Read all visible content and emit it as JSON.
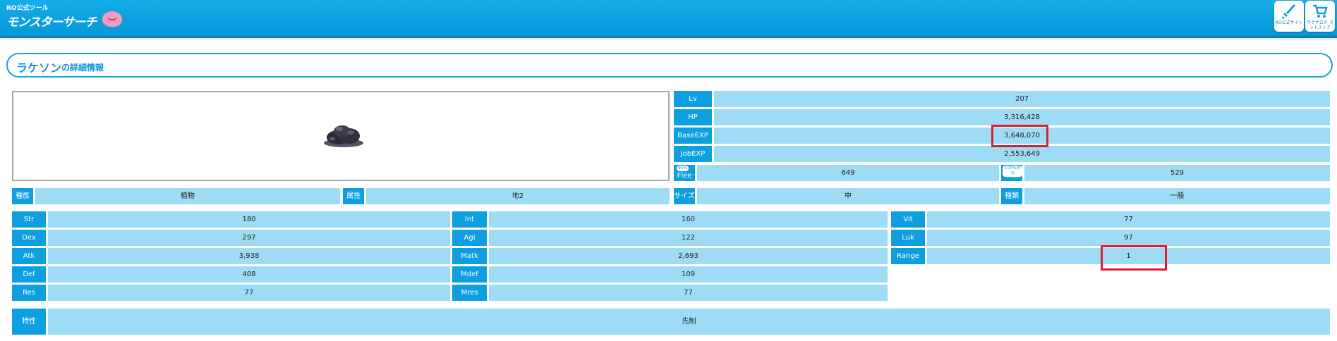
{
  "header": {
    "subtitle": "RO公式ツール",
    "title": "モンスターサーチ",
    "official_site_label": "RO公式サイト",
    "store_label": "ラグナロク ネットストア"
  },
  "monster": {
    "name": "ラケソン",
    "title_suffix": "の詳細情報"
  },
  "stats_right": {
    "lv": {
      "label": "Lv",
      "value": "207"
    },
    "hp": {
      "label": "HP",
      "value": "3,316,428"
    },
    "base_exp": {
      "label": "BaseEXP",
      "value": "3,648,070"
    },
    "job_exp": {
      "label": "JobEXP",
      "value": "2,553,649"
    },
    "flee": {
      "label": "Flee",
      "badge": "95%",
      "value": "649"
    },
    "hit": {
      "label": "Hit",
      "badge": "100%命中",
      "value": "529"
    }
  },
  "attributes": {
    "race": {
      "label": "種族",
      "value": "植物"
    },
    "element": {
      "label": "属性",
      "value": "地2"
    },
    "size": {
      "label": "サイズ",
      "value": "中"
    },
    "type": {
      "label": "種類",
      "value": "一般"
    }
  },
  "stats": {
    "str": {
      "label": "Str",
      "value": "180"
    },
    "int": {
      "label": "Int",
      "value": "160"
    },
    "vit": {
      "label": "Vit",
      "value": "77"
    },
    "dex": {
      "label": "Dex",
      "value": "297"
    },
    "agi": {
      "label": "Agi",
      "value": "122"
    },
    "luk": {
      "label": "Luk",
      "value": "97"
    },
    "atk": {
      "label": "Atk",
      "value": "3,938"
    },
    "matk": {
      "label": "Matk",
      "value": "2,693"
    },
    "range": {
      "label": "Range",
      "value": "1"
    },
    "def": {
      "label": "Def",
      "value": "408"
    },
    "mdef": {
      "label": "Mdef",
      "value": "109"
    },
    "res": {
      "label": "Res",
      "value": "77"
    },
    "mres": {
      "label": "Mres",
      "value": "77"
    }
  },
  "traits": {
    "label": "特性",
    "value": "先制"
  },
  "colors": {
    "accent": "#0d9fdf",
    "value_bg": "#9ddcf4",
    "highlight": "#e01e2b"
  }
}
